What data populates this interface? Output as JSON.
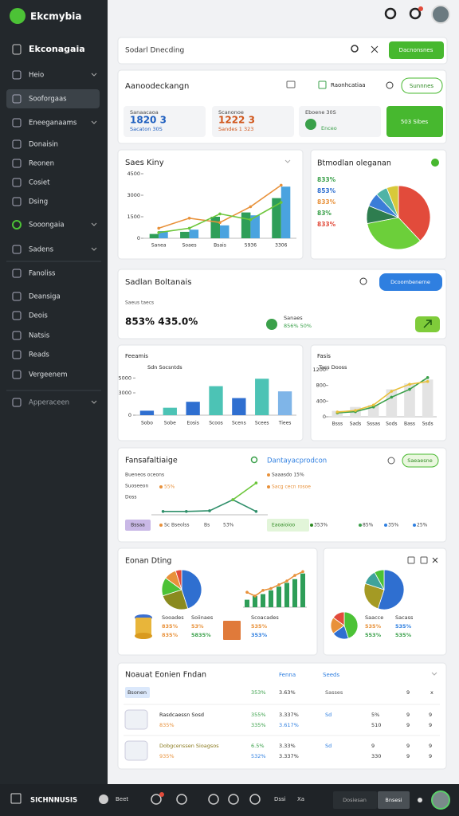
{
  "brand": "Ekcmybia",
  "sidebar": {
    "title": "Ekconagaia",
    "items": [
      "Heio",
      "Sooforgaas",
      "Eneeganaams",
      "Donaisin",
      "Reonen",
      "Cosiet",
      "Dsing",
      "Sooongaia",
      "Sadens",
      "Fanoliss",
      "Deansiga",
      "Deois",
      "Natsis",
      "Reads",
      "Vergeenem",
      "Apperaceen"
    ]
  },
  "search": {
    "placeholder": "Sodarl Dnecding",
    "button": "Dacnonsnes"
  },
  "summary": {
    "title": "Aanoodeckangn",
    "link": "Raonhcatiaa",
    "button": "Sunnnes",
    "cards": [
      {
        "label": "Sanaacaoa",
        "value": "1820 3",
        "note": "Sacaton 30S"
      },
      {
        "label": "Scanonoe",
        "value": "1222 3",
        "note": "Sandes 1 323"
      },
      {
        "label": "Eboene 30S",
        "note": "Enceo"
      }
    ],
    "action": "503 Sibes"
  },
  "sales": {
    "title": "Saes Kiny",
    "type": "combo",
    "categories": [
      "Sanea",
      "Soaes",
      "Bsais",
      "5936",
      "3306"
    ],
    "ylim": [
      0,
      4500
    ],
    "yticks": [
      0,
      1500,
      3000,
      4500
    ],
    "series": [
      {
        "kind": "bar",
        "color": "#2e9e58",
        "values": [
          300,
          450,
          1500,
          1800,
          2800
        ]
      },
      {
        "kind": "bar",
        "color": "#4aa3df",
        "values": [
          500,
          600,
          900,
          1600,
          3600
        ]
      },
      {
        "kind": "line",
        "color": "#e8913a",
        "values": [
          700,
          1400,
          1100,
          2200,
          3700
        ]
      },
      {
        "kind": "line",
        "color": "#6cc63a",
        "values": [
          400,
          700,
          1700,
          1300,
          2500
        ]
      }
    ]
  },
  "share": {
    "title": "Btmodlan oleganan",
    "type": "pie",
    "labels": [
      "833%",
      "853%",
      "833%",
      "83%",
      "833%"
    ],
    "label_colors": [
      "#3aa04a",
      "#2f6fd0",
      "#e8913a",
      "#3aa04a",
      "#e24b3b"
    ],
    "slices": [
      {
        "value": 38,
        "color": "#e24b3b"
      },
      {
        "value": 34,
        "color": "#6ccf3a"
      },
      {
        "value": 9,
        "color": "#2e7d4f"
      },
      {
        "value": 7,
        "color": "#3b7dd8"
      },
      {
        "value": 6,
        "color": "#4fb3a6"
      },
      {
        "value": 6,
        "color": "#d8c93a"
      }
    ]
  },
  "balance": {
    "title": "Sadlan Boltanais",
    "button": "Dcoombenerne",
    "subtitle": "Saeus taecs",
    "big": "853% 435.0%",
    "stat_label": "Sanaes",
    "stat_value": "856% 50%"
  },
  "bars": {
    "title": "Feeamis",
    "subtitle": "Sdn Socsntds",
    "type": "combo",
    "categories": [
      "Sobo",
      "Sobe",
      "Eosis",
      "Scoos",
      "Scens",
      "Scees",
      "Tiees"
    ],
    "ylim": [
      0,
      6000
    ],
    "yticks": [
      0,
      3000,
      5000
    ],
    "series": [
      {
        "kind": "bar",
        "colors": [
          "#2f6fd0",
          "#4cc3b5",
          "#2f6fd0",
          "#4cc3b5",
          "#2f6fd0",
          "#4cc3b5",
          "#7fb5e8"
        ],
        "values": [
          600,
          1000,
          1800,
          3900,
          2300,
          4900,
          3200
        ]
      }
    ]
  },
  "trend": {
    "title": "Fasis",
    "subtitle": "Tass Dooss",
    "type": "combo",
    "categories": [
      "Bsss",
      "Sads",
      "Sssas",
      "Sods",
      "Bass",
      "Ssds"
    ],
    "ylim": [
      0,
      1200
    ],
    "yticks": [
      0,
      400,
      800,
      1200
    ],
    "series": [
      {
        "kind": "bar",
        "color": "#e3e3e3",
        "values": [
          150,
          250,
          300,
          700,
          850,
          950
        ]
      },
      {
        "kind": "line",
        "color": "#3aa04a",
        "values": [
          100,
          130,
          250,
          500,
          700,
          1000
        ]
      },
      {
        "kind": "line",
        "color": "#e8c03a",
        "values": [
          120,
          160,
          300,
          650,
          830,
          900
        ]
      }
    ]
  },
  "perf": {
    "title": "Fansafaltiaige",
    "right_title": "Dantayacprodcon",
    "button": "Saeaesne",
    "left_labels": [
      "Bueneos oceons",
      "Suoseeon",
      "Doss"
    ],
    "highlight": "55%",
    "right_labels": [
      "Saaasdo 15%",
      "Sacg cecn rosoe"
    ],
    "tag": "Bssaa",
    "row": [
      "Sc Bseolss",
      "Bs",
      "53%"
    ],
    "right_tag": "Eaoaioioo",
    "right_row": [
      "353%",
      "85%",
      "35%",
      "25%"
    ],
    "chart": {
      "type": "combo",
      "ylim": [
        0,
        100
      ],
      "yticks": [],
      "series": [
        {
          "kind": "line",
          "color": "#2f8f6a",
          "values": [
            10,
            10,
            12,
            45,
            10
          ]
        },
        {
          "kind": "line",
          "color": "#6cc63a",
          "values": [
            null,
            null,
            null,
            45,
            95
          ]
        }
      ]
    }
  },
  "rating": {
    "title": "Eonan Dting",
    "pie": {
      "type": "pie",
      "slices": [
        {
          "value": 45,
          "color": "#2f6fd0"
        },
        {
          "value": 25,
          "color": "#8a8a1e"
        },
        {
          "value": 15,
          "color": "#4cc236"
        },
        {
          "value": 10,
          "color": "#e8913a"
        },
        {
          "value": 5,
          "color": "#e24b3b"
        }
      ]
    },
    "mini": {
      "type": "combo",
      "ylim": [
        0,
        100
      ],
      "yticks": [],
      "series": [
        {
          "kind": "bar",
          "color": "#2e9e58",
          "values": [
            20,
            30,
            35,
            45,
            55,
            65,
            75,
            90
          ]
        },
        {
          "kind": "line",
          "color": "#e8913a",
          "values": [
            40,
            30,
            45,
            50,
            60,
            70,
            85,
            95
          ]
        }
      ]
    },
    "cols": [
      [
        "Sooades",
        "835%",
        "835%"
      ],
      [
        "Soiinaes",
        "53%",
        "5835%"
      ],
      [
        "Scoacades",
        "535%",
        "353%"
      ]
    ]
  },
  "side_pies": {
    "big": {
      "type": "pie",
      "slices": [
        {
          "value": 55,
          "color": "#2f6fd0"
        },
        {
          "value": 25,
          "color": "#a49a24"
        },
        {
          "value": 12,
          "color": "#3fa39b"
        },
        {
          "value": 8,
          "color": "#4cc236"
        }
      ]
    },
    "small": {
      "type": "pie",
      "slices": [
        {
          "value": 45,
          "color": "#4cc236"
        },
        {
          "value": 20,
          "color": "#2f6fd0"
        },
        {
          "value": 20,
          "color": "#e8913a"
        },
        {
          "value": 15,
          "color": "#e24b3b"
        }
      ]
    },
    "cols": [
      [
        "Saacce",
        "535%",
        "553%"
      ],
      [
        "Sacass",
        "535%",
        "535%"
      ]
    ]
  },
  "table": {
    "title": "Noauat Eonien Fndan",
    "headers": [
      "Fenna",
      "Seeds"
    ],
    "rows": [
      [
        "Bsonen",
        "353%",
        "3.63%",
        "Sasses",
        "9",
        "x"
      ],
      [
        "Rasdcaessn Sosd",
        "355%",
        "3.337%",
        "Sd",
        "5%",
        "9",
        "9"
      ],
      [
        "835%",
        "335%",
        "3.617%",
        "510",
        "9",
        "9"
      ],
      [
        "Dobgcenssen Sioagsos",
        "6.5%",
        "3.33%",
        "Sd",
        "9",
        "9",
        "9"
      ],
      [
        "935%",
        "532%",
        "3.337%",
        "330",
        "9",
        "9"
      ]
    ]
  },
  "footer": {
    "brand": "SICHNNUSIS",
    "items": [
      "Beet",
      "Dssi",
      "Xa"
    ],
    "field": "Dosiesan",
    "button": "Bnsesi"
  }
}
